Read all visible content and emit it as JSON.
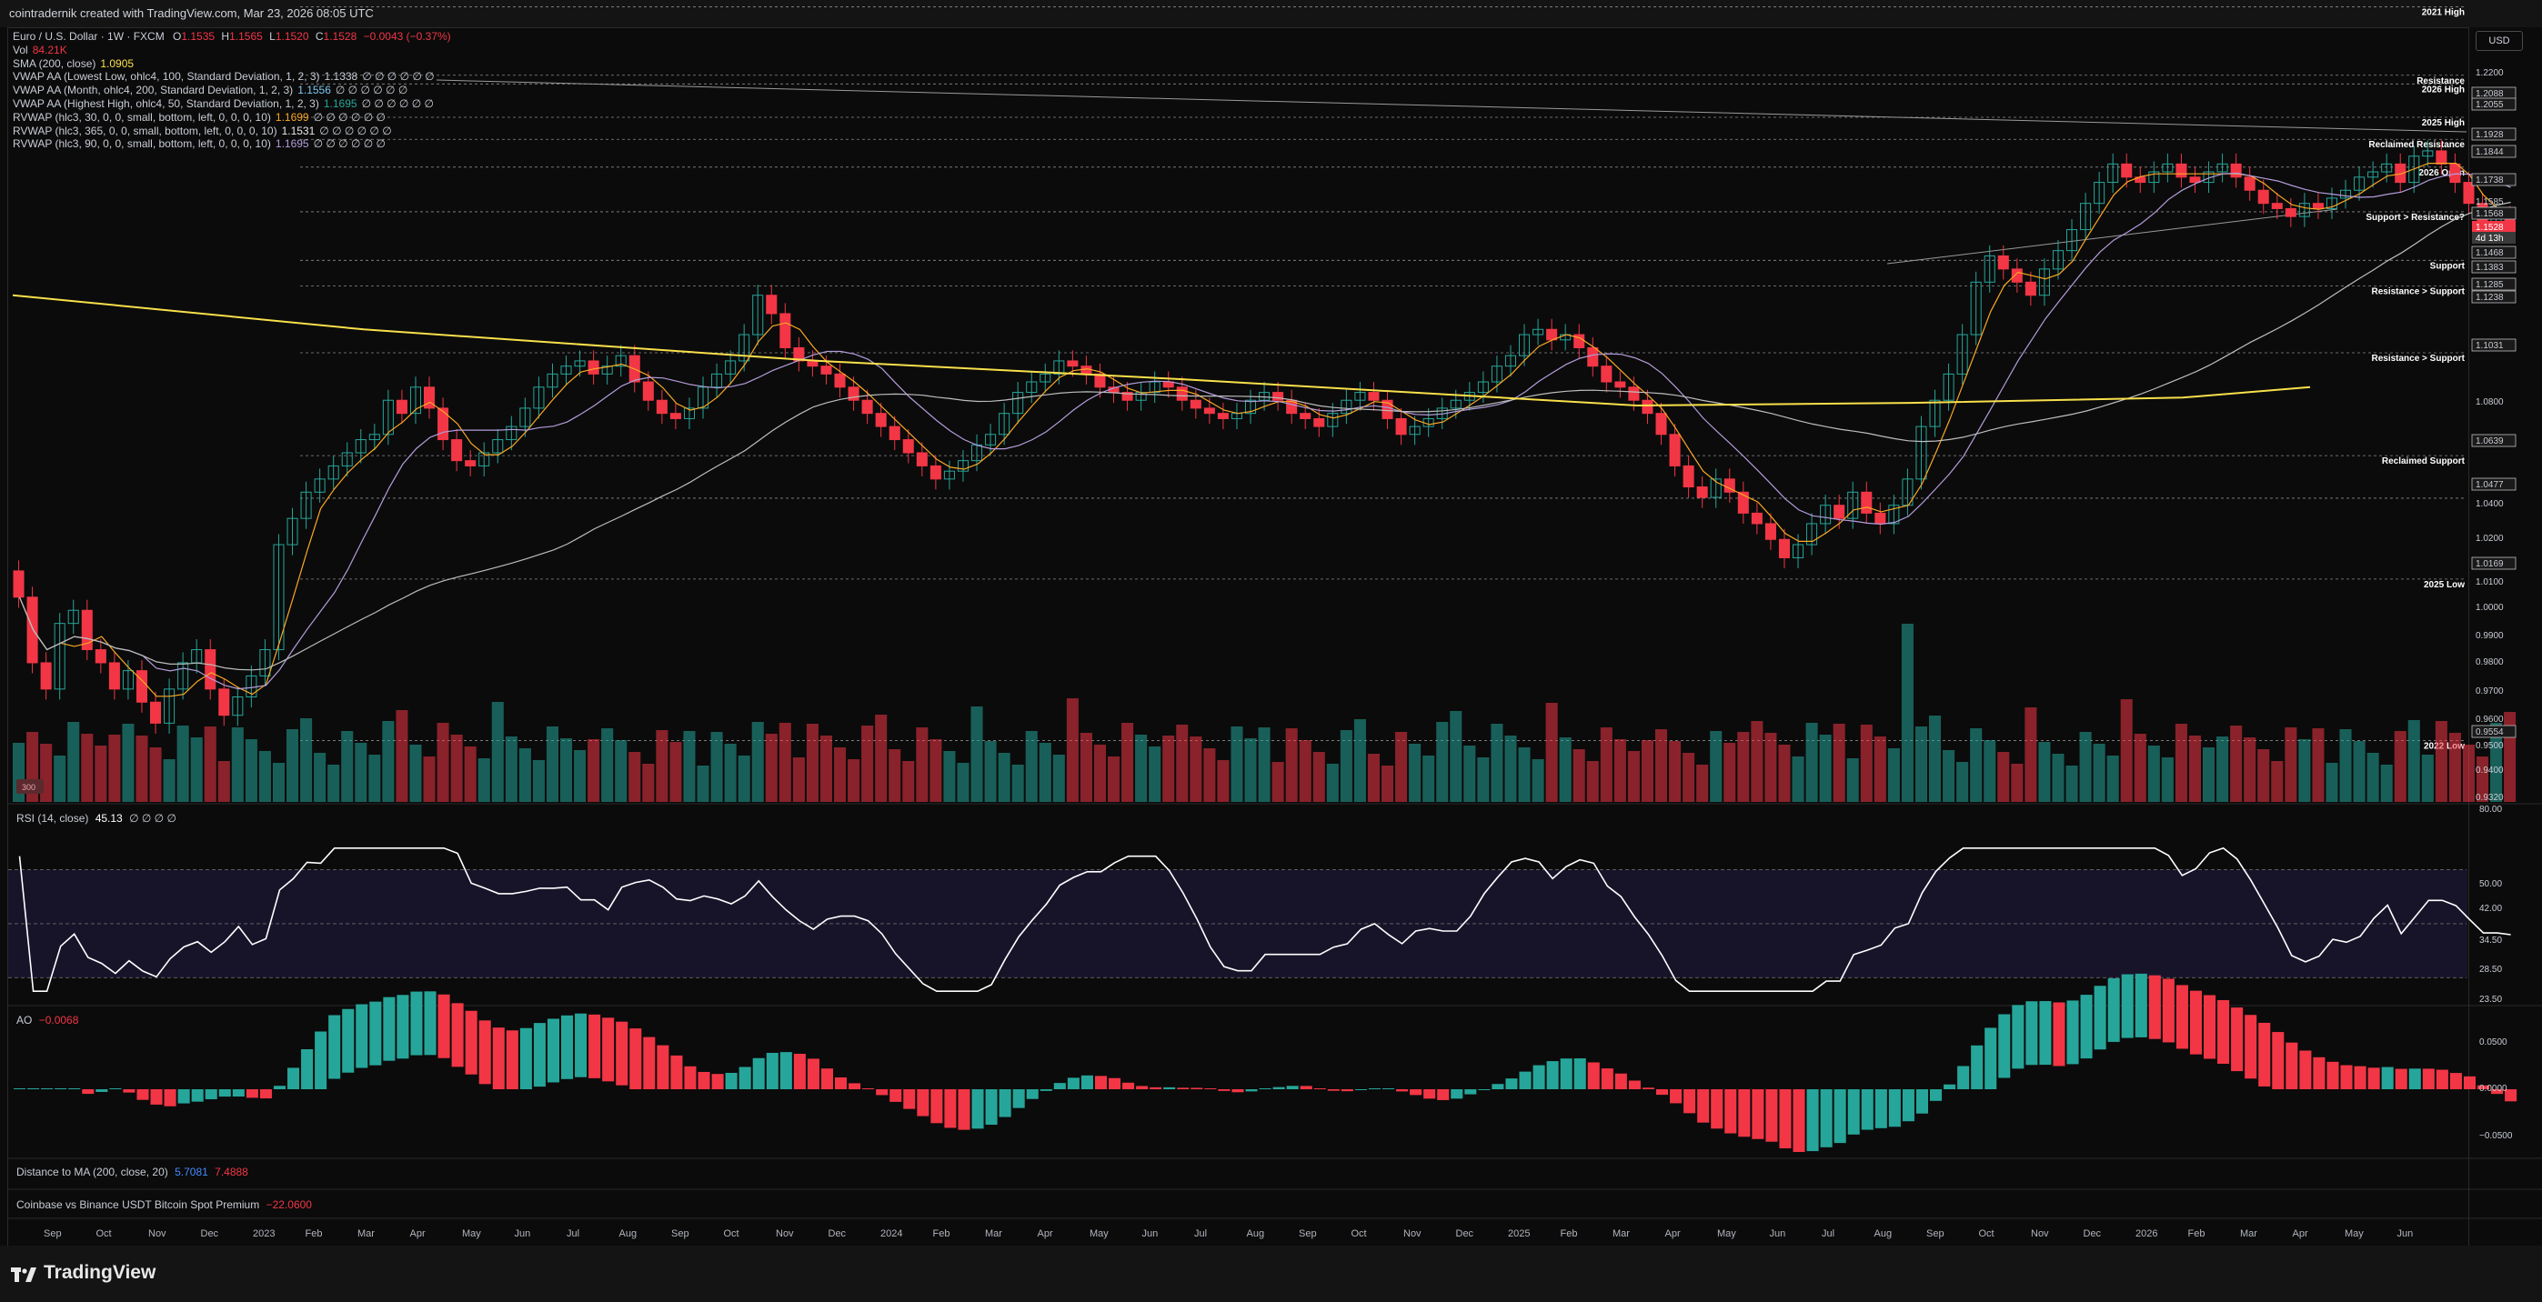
{
  "header": {
    "caption": "cointradernik created with TradingView.com, Mar 23, 2026 08:05 UTC"
  },
  "symbol": {
    "name": "Euro / U.S. Dollar · 1W · FXCM",
    "o_label": "O",
    "o": "1.1535",
    "h_label": "H",
    "h": "1.1565",
    "l_label": "L",
    "l": "1.1520",
    "c_label": "C",
    "c": "1.1528",
    "change": "−0.0043 (−0.37%)"
  },
  "indicators": [
    {
      "label": "Vol",
      "value": "84.21K",
      "color": "#f23645"
    },
    {
      "label": "SMA (200, close)",
      "value": "1.0905",
      "color": "#f9e04b"
    },
    {
      "label": "VWAP AA (Lowest Low, ohlc4, 100, Standard Deviation, 1, 2, 3)",
      "value": "1.1338",
      "color": "#c8ccd4",
      "extra": "∅ ∅ ∅ ∅ ∅ ∅"
    },
    {
      "label": "VWAP AA (Month, ohlc4, 200, Standard Deviation, 1, 2, 3)",
      "value": "1.1556",
      "color": "#7ec8f0",
      "extra": "∅ ∅ ∅ ∅ ∅ ∅"
    },
    {
      "label": "VWAP AA (Highest High, ohlc4, 50, Standard Deviation, 1, 2, 3)",
      "value": "1.1695",
      "color": "#26a69a",
      "extra": "∅ ∅ ∅ ∅ ∅ ∅"
    },
    {
      "label": "RVWAP (hlc3, 30, 0, 0, small, bottom, left, 0, 0, 0, 10)",
      "value": "1.1699",
      "color": "#f9a825",
      "extra": "∅ ∅ ∅ ∅ ∅ ∅"
    },
    {
      "label": "RVWAP (hlc3, 365, 0, 0, small, bottom, left, 0, 0, 0, 10)",
      "value": "1.1531",
      "color": "#e8e8e8",
      "extra": "∅ ∅ ∅ ∅ ∅ ∅"
    },
    {
      "label": "RVWAP (hlc3, 90, 0, 0, small, bottom, left, 0, 0, 0, 10)",
      "value": "1.1695",
      "color": "#b39ddb",
      "extra": "∅ ∅ ∅ ∅ ∅ ∅"
    }
  ],
  "currency": "USD",
  "price_scale": [
    "1.2200",
    "1.2088",
    "1.2055",
    "1.1928",
    "1.1844",
    "1.1738",
    "1.1585",
    "1.1568",
    "1.1528",
    "4d 13h",
    "1.1468",
    "1.1383",
    "1.1285",
    "1.1238",
    "1.1031",
    "1.0800",
    "1.0639",
    "1.0477",
    "1.0400",
    "1.0200",
    "1.0169",
    "1.0100",
    "1.0000",
    "0.9900",
    "0.9800",
    "0.9700",
    "0.9600",
    "0.9554",
    "0.9500",
    "0.9400",
    "0.9320"
  ],
  "levels": [
    {
      "label": "2021 High",
      "price": 1.2349
    },
    {
      "label": "Resistance",
      "price": 1.2088
    },
    {
      "label": "2026 High",
      "price": 1.2055
    },
    {
      "label": "2025 High",
      "price": 1.1928
    },
    {
      "label": "Reclaimed Resistance",
      "price": 1.1844
    },
    {
      "label": "2026 Open",
      "price": 1.1738
    },
    {
      "label": "Support > Resistance?",
      "price": 1.1568
    },
    {
      "label": "Support",
      "price": 1.1383
    },
    {
      "label": "Resistance > Support",
      "price": 1.1285
    },
    {
      "label": "Resistance > Support",
      "price": 1.1031
    },
    {
      "label": "Reclaimed Support",
      "price": 1.0639
    },
    {
      "label": "",
      "price": 1.0477
    },
    {
      "label": "2025 Low",
      "price": 1.0169
    },
    {
      "label": "2022 Low",
      "price": 0.9554
    }
  ],
  "volume_badge": "300",
  "rsi": {
    "title": "RSI (14, close)",
    "value": "45.13",
    "extra": "∅ ∅ ∅ ∅",
    "scale": [
      "80.00",
      "50.00",
      "42.00",
      "34.50",
      "28.50",
      "23.50"
    ],
    "upper": 70,
    "lower": 30
  },
  "ao": {
    "title": "AO",
    "value": "−0.0068",
    "scale": [
      "0.0500",
      "0.0000",
      "−0.0500"
    ]
  },
  "dist": {
    "title": "Distance to MA (200, close, 20)",
    "v1": "5.7081",
    "v2": "7.4888"
  },
  "premium": {
    "title": "Coinbase vs Binance USDT Bitcoin Spot Premium",
    "value": "−22.0600"
  },
  "time_axis": [
    "Sep",
    "Oct",
    "Nov",
    "Dec",
    "2023",
    "Feb",
    "Mar",
    "Apr",
    "May",
    "Jun",
    "Jul",
    "Aug",
    "Sep",
    "Oct",
    "Nov",
    "Dec",
    "2024",
    "Feb",
    "Mar",
    "Apr",
    "May",
    "Jun",
    "Jul",
    "Aug",
    "Sep",
    "Oct",
    "Nov",
    "Dec",
    "2025",
    "Feb",
    "Mar",
    "Apr",
    "May",
    "Jun",
    "Jul",
    "Aug",
    "Sep",
    "Oct",
    "Nov",
    "Dec",
    "2026",
    "Feb",
    "Mar",
    "Apr",
    "May",
    "Jun"
  ],
  "brand": "TradingView",
  "colors": {
    "up": "#26a69a",
    "down": "#f23645",
    "sma": "#f9e04b",
    "background": "#0b0b0b"
  },
  "chart_data": {
    "type": "candlestick",
    "price_range": [
      0.932,
      1.225
    ],
    "closes": [
      1.01,
      0.985,
      0.975,
      1.0,
      1.005,
      0.99,
      0.985,
      0.975,
      0.982,
      0.97,
      0.962,
      0.975,
      0.985,
      0.99,
      0.975,
      0.965,
      0.972,
      0.98,
      0.99,
      1.03,
      1.04,
      1.05,
      1.055,
      1.06,
      1.065,
      1.07,
      1.072,
      1.085,
      1.08,
      1.09,
      1.082,
      1.07,
      1.062,
      1.06,
      1.065,
      1.07,
      1.075,
      1.082,
      1.09,
      1.095,
      1.098,
      1.1,
      1.095,
      1.098,
      1.102,
      1.092,
      1.085,
      1.08,
      1.078,
      1.082,
      1.09,
      1.095,
      1.1,
      1.11,
      1.125,
      1.118,
      1.105,
      1.1,
      1.098,
      1.095,
      1.09,
      1.085,
      1.08,
      1.075,
      1.07,
      1.065,
      1.06,
      1.055,
      1.058,
      1.062,
      1.068,
      1.072,
      1.08,
      1.088,
      1.092,
      1.095,
      1.1,
      1.098,
      1.095,
      1.09,
      1.088,
      1.085,
      1.088,
      1.092,
      1.09,
      1.085,
      1.082,
      1.08,
      1.078,
      1.08,
      1.085,
      1.088,
      1.085,
      1.08,
      1.078,
      1.075,
      1.08,
      1.085,
      1.088,
      1.085,
      1.078,
      1.072,
      1.075,
      1.078,
      1.082,
      1.085,
      1.088,
      1.092,
      1.098,
      1.102,
      1.11,
      1.112,
      1.108,
      1.11,
      1.105,
      1.098,
      1.092,
      1.09,
      1.085,
      1.08,
      1.072,
      1.06,
      1.052,
      1.048,
      1.055,
      1.05,
      1.042,
      1.038,
      1.032,
      1.025,
      1.03,
      1.038,
      1.045,
      1.04,
      1.05,
      1.042,
      1.038,
      1.045,
      1.055,
      1.075,
      1.085,
      1.095,
      1.11,
      1.13,
      1.14,
      1.135,
      1.13,
      1.125,
      1.135,
      1.142,
      1.15,
      1.16,
      1.168,
      1.175,
      1.17,
      1.168,
      1.172,
      1.175,
      1.17,
      1.168,
      1.172,
      1.175,
      1.17,
      1.165,
      1.16,
      1.158,
      1.155,
      1.16,
      1.158,
      1.162,
      1.165,
      1.17,
      1.172,
      1.175,
      1.168,
      1.178,
      1.18,
      1.175,
      1.168,
      1.16,
      1.15,
      1.155,
      1.152
    ]
  }
}
